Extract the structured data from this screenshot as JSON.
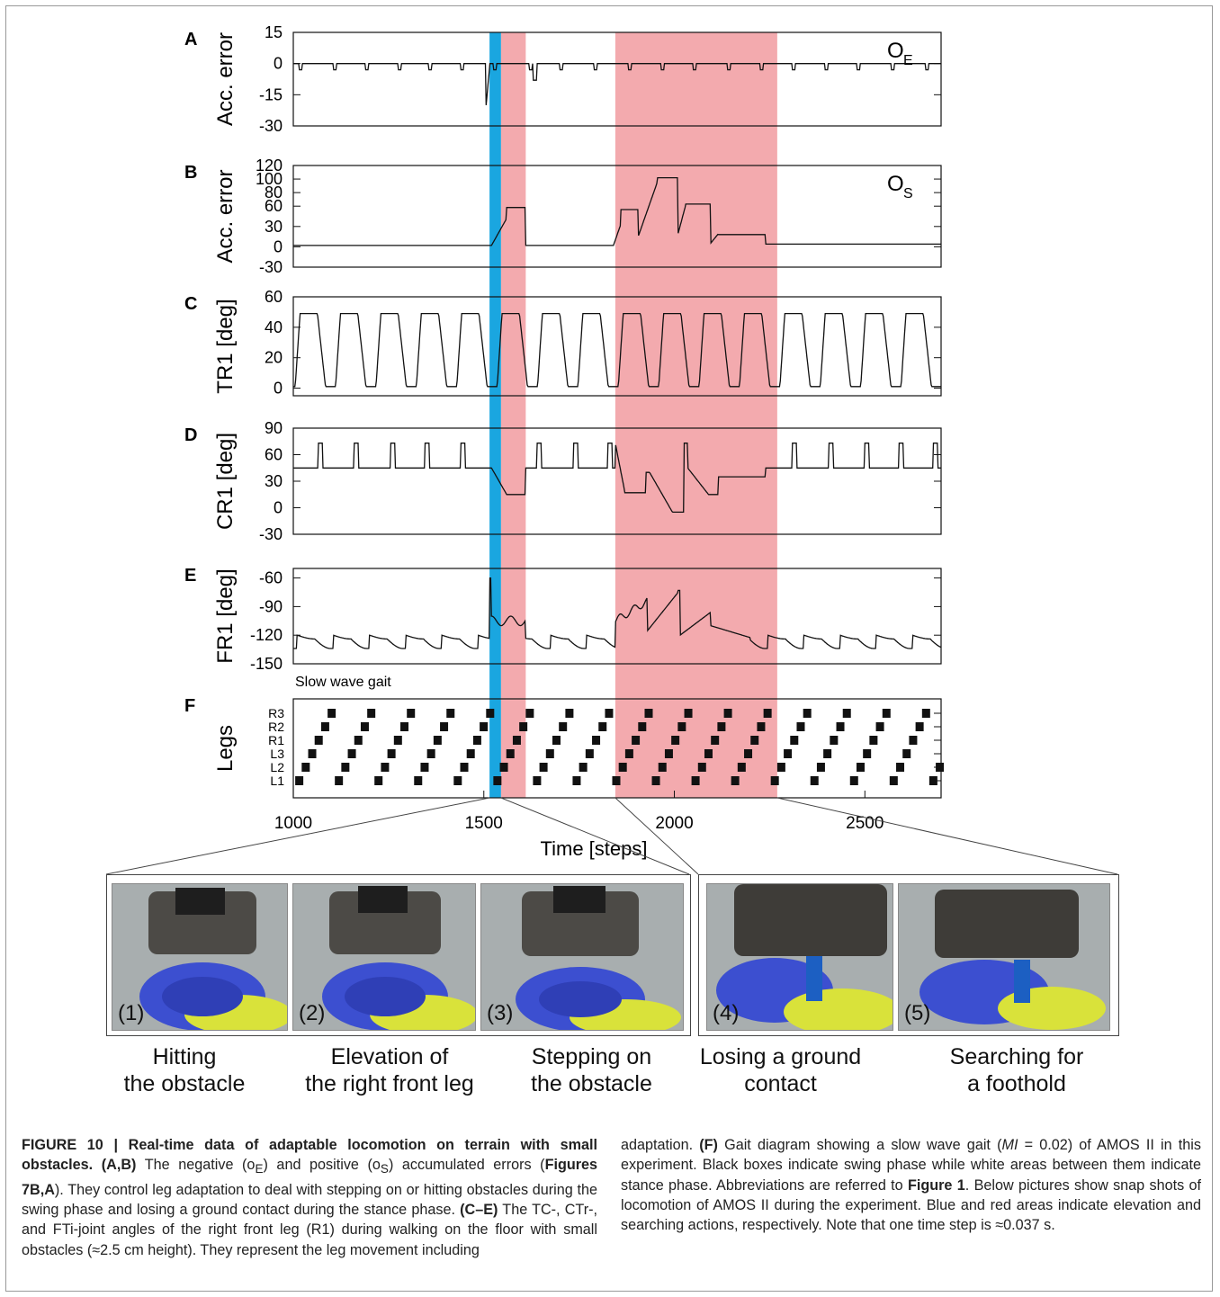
{
  "figure": {
    "panel_letters": [
      "A",
      "B",
      "C",
      "D",
      "E",
      "F"
    ],
    "ylabels": [
      "Acc. error",
      "Acc. error",
      "TR1 [deg]",
      "CR1 [deg]",
      "FR1 [deg]",
      "Legs"
    ],
    "xlabel": "Time [steps]",
    "x_ticks": [
      "1000",
      "1500",
      "2000",
      "2500"
    ],
    "slow_wave_label": "Slow wave gait",
    "blue_color": "#1aa6e0",
    "red_color": "#f3aaae"
  },
  "chart_data": [
    {
      "type": "line",
      "panel": "A",
      "ylabel": "Acc. error",
      "series_label": "O",
      "series_sub": "E",
      "xlim": [
        1000,
        2700
      ],
      "ylim": [
        -30,
        15
      ],
      "yticks": [
        "15",
        "0",
        "-15",
        "-30"
      ],
      "description": "Mostly zero with short negative dips; large dip near 1510 to about -22"
    },
    {
      "type": "line",
      "panel": "B",
      "ylabel": "Acc. error",
      "series_label": "O",
      "series_sub": "S",
      "xlim": [
        1000,
        2700
      ],
      "ylim": [
        -30,
        120
      ],
      "yticks": [
        "120",
        "100",
        "80",
        "60",
        "30",
        "0",
        "-30"
      ],
      "description": "Near zero, plateaus ~58 during first red region, ~55/102/63/18 during second red region"
    },
    {
      "type": "line",
      "panel": "C",
      "ylabel": "TR1 [deg]",
      "xlim": [
        1000,
        2700
      ],
      "ylim": [
        -5,
        60
      ],
      "yticks": [
        "60",
        "40",
        "20",
        "0"
      ],
      "description": "Periodic oscillation between ~1 and ~49 degrees, period ~105 steps"
    },
    {
      "type": "line",
      "panel": "D",
      "ylabel": "CR1 [deg]",
      "xlim": [
        1000,
        2700
      ],
      "ylim": [
        -30,
        90
      ],
      "yticks": [
        "90",
        "60",
        "30",
        "0",
        "-30"
      ],
      "description": "Baseline 45 with spikes to ~73; drops to ~15 and ~-5 during searching"
    },
    {
      "type": "line",
      "panel": "E",
      "ylabel": "FR1 [deg]",
      "xlim": [
        1000,
        2700
      ],
      "ylim": [
        -150,
        -50
      ],
      "yticks": [
        "-60",
        "-90",
        "-120",
        "-150"
      ],
      "description": "Oscillation between ~-120 and ~-135; rises to ~-60 at obstacle hit and ~-73 during searching"
    },
    {
      "type": "gait",
      "panel": "F",
      "ylabel": "Legs",
      "legs": [
        "R3",
        "R2",
        "R1",
        "L3",
        "L2",
        "L1"
      ],
      "xlim": [
        1000,
        2700
      ],
      "description": "Black boxes mark swing phases in a slow wave gait"
    }
  ],
  "regions": {
    "blue": [
      1515,
      1545
    ],
    "red": [
      [
        1545,
        1610
      ],
      [
        1845,
        2270
      ]
    ]
  },
  "photos": {
    "items": [
      {
        "num": "(1)",
        "label1": "Hitting",
        "label2": "the obstacle"
      },
      {
        "num": "(2)",
        "label1": "Elevation of",
        "label2": "the right front leg"
      },
      {
        "num": "(3)",
        "label1": "Stepping on",
        "label2": "the obstacle"
      },
      {
        "num": "(4)",
        "label1": "Losing a ground",
        "label2": "contact"
      },
      {
        "num": "(5)",
        "label1": "Searching for",
        "label2": "a foothold"
      }
    ]
  },
  "caption": {
    "title": "FIGURE 10 | Real-time data of adaptable locomotion on terrain with small obstacles.",
    "p1_a": "(A,B)",
    "p1_b": " The negative (o",
    "p1_sub1": "E",
    "p1_c": ") and positive (o",
    "p1_sub2": "S",
    "p1_d": ") accumulated errors (",
    "p1_fig": "Figures 7B,A",
    "p1_e": "). They control leg adaptation to deal with stepping on or hitting obstacles during the swing phase and losing a ground contact during the stance phase. ",
    "p1_ce": "(C–E)",
    "p1_f": " The TC-, CTr-, and FTi-joint angles of the right front leg (R1) during walking on the floor with small obstacles (≈2.5 cm height). They represent the leg movement including",
    "p2_a": "adaptation. ",
    "p2_f": "(F)",
    "p2_b": " Gait diagram showing a slow wave gait (",
    "p2_mi": "MI",
    "p2_c": " = 0.02) of AMOS II in this experiment. Black boxes indicate swing phase while white areas between them indicate stance phase. Abbreviations are referred to ",
    "p2_fig": "Figure 1",
    "p2_d": ". Below pictures show snap shots of locomotion of AMOS II during the experiment. Blue and red areas indicate elevation and searching actions, respectively. Note that one time step is ≈0.037 s."
  }
}
